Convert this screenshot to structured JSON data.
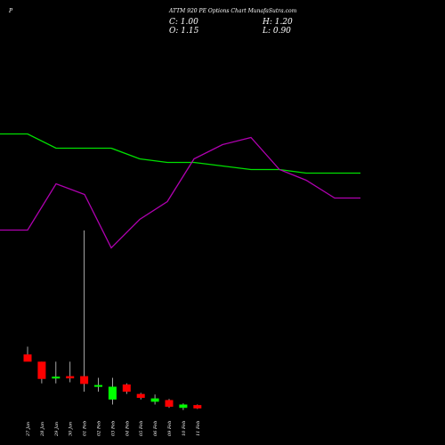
{
  "header": {
    "symbol": "P",
    "title": "ATTM 920  PE Options  Chart MunafaSutra.com",
    "close_label": "C: 1.00",
    "high_label": "H: 1.20",
    "open_label": "O: 1.15",
    "low_label": "L: 0.90"
  },
  "colors": {
    "background": "#000000",
    "up": "#00ff00",
    "down": "#ff0000",
    "line_green": "#00e000",
    "line_magenta": "#b000b0",
    "wick": "#cccccc"
  },
  "chart_data": {
    "type": "candlestick",
    "categories": [
      "27 Jan",
      "28 Jan",
      "29 Jan",
      "30 Jan",
      "01 Feb",
      "02 Feb",
      "03 Feb",
      "04 Feb",
      "05 Feb",
      "06 Feb",
      "09 Feb",
      "10 Feb",
      "11 Feb"
    ],
    "candles": [
      {
        "open": 6.2,
        "high": 7.6,
        "low": 5.2,
        "close": 4.9,
        "dir": "down"
      },
      {
        "open": 4.9,
        "high": 4.9,
        "low": 1.0,
        "close": 1.8,
        "dir": "down"
      },
      {
        "open": 2.0,
        "high": 4.9,
        "low": 1.0,
        "close": 2.2,
        "dir": "up"
      },
      {
        "open": 2.3,
        "high": 4.9,
        "low": 1.2,
        "close": 1.9,
        "dir": "down"
      },
      {
        "open": 2.3,
        "high": 28.5,
        "low": -0.5,
        "close": 0.9,
        "dir": "down"
      },
      {
        "open": 0.4,
        "high": 2.0,
        "low": -0.5,
        "close": 0.7,
        "dir": "up"
      },
      {
        "open": -1.9,
        "high": 2.0,
        "low": -2.8,
        "close": 0.4,
        "dir": "up"
      },
      {
        "open": 0.8,
        "high": 1.0,
        "low": -0.9,
        "close": -0.5,
        "dir": "down"
      },
      {
        "open": -0.9,
        "high": -0.7,
        "low": -1.9,
        "close": -1.6,
        "dir": "down"
      },
      {
        "open": -1.7,
        "high": -1.0,
        "low": -2.8,
        "close": -2.3,
        "dir": "up"
      },
      {
        "open": -2.0,
        "high": -1.8,
        "low": -3.4,
        "close": -3.2,
        "dir": "down"
      },
      {
        "open": -3.4,
        "high": -2.6,
        "low": -3.8,
        "close": -2.8,
        "dir": "up"
      },
      {
        "open": -2.9,
        "high": -2.8,
        "low": -3.6,
        "close": -3.5,
        "dir": "down"
      }
    ],
    "lines": [
      {
        "color": "green",
        "x": [
          0,
          1,
          2,
          3,
          4,
          5,
          6,
          7,
          8,
          9,
          10,
          11,
          12
        ],
        "y": [
          82,
          82,
          78,
          78,
          78,
          75,
          74,
          74,
          73,
          72,
          72,
          71,
          71
        ]
      },
      {
        "color": "magenta",
        "x": [
          0,
          1,
          2,
          3,
          4,
          5,
          6,
          7,
          8,
          9,
          10,
          11,
          12
        ],
        "y": [
          55,
          55,
          68,
          65,
          50,
          58,
          63,
          75,
          79,
          81,
          72,
          69,
          64
        ]
      }
    ]
  }
}
